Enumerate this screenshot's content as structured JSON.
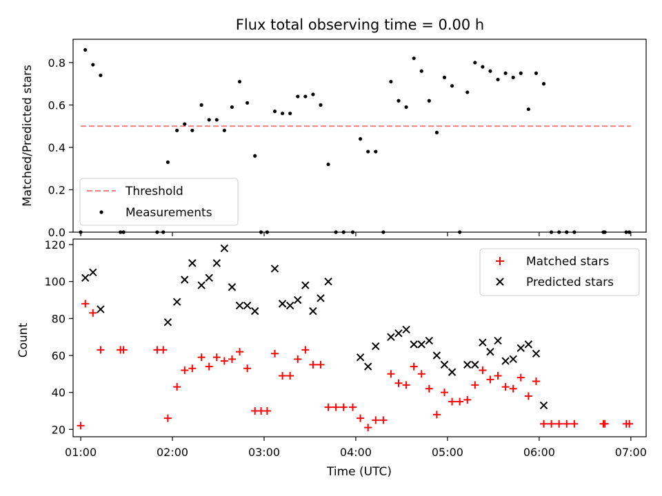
{
  "figure": {
    "title": "Flux total observing time = 0.00 h"
  },
  "colors": {
    "threshold": "#f08080",
    "measurements": "#000000",
    "matched": "#ff0000",
    "predicted": "#000000"
  },
  "chart_data": [
    {
      "type": "scatter",
      "panel": "top",
      "title": "Flux total observing time = 0.00 h",
      "xlabel": "",
      "ylabel": "Matched/Predicted stars",
      "xlim_minutes_utc": [
        55,
        430
      ],
      "ylim": [
        0,
        0.91
      ],
      "yticks": [
        0.0,
        0.2,
        0.4,
        0.6,
        0.8
      ],
      "ytick_labels": [
        "0.0",
        "0.2",
        "0.4",
        "0.6",
        "0.8"
      ],
      "xticks": [
        "01:00",
        "02:00",
        "03:00",
        "04:00",
        "05:00",
        "06:00",
        "07:00"
      ],
      "xtick_labels_shown": false,
      "legend_position": "lower-left",
      "legend": [
        {
          "label": "Threshold",
          "style": "dashed-line",
          "color": "#f08080"
        },
        {
          "label": "Measurements",
          "style": "dot",
          "color": "#000000"
        }
      ],
      "threshold": {
        "name": "Threshold",
        "y": 0.5,
        "x_start": "01:00",
        "x_end": "07:00"
      },
      "series": [
        {
          "name": "Measurements",
          "points": [
            [
              "01:00",
              0.0
            ],
            [
              "01:03",
              0.86
            ],
            [
              "01:08",
              0.79
            ],
            [
              "01:13",
              0.74
            ],
            [
              "01:26",
              0.0
            ],
            [
              "01:28",
              0.0
            ],
            [
              "01:50",
              0.0
            ],
            [
              "01:54",
              0.0
            ],
            [
              "01:57",
              0.33
            ],
            [
              "02:03",
              0.48
            ],
            [
              "02:08",
              0.51
            ],
            [
              "02:13",
              0.48
            ],
            [
              "02:19",
              0.6
            ],
            [
              "02:24",
              0.53
            ],
            [
              "02:29",
              0.53
            ],
            [
              "02:34",
              0.48
            ],
            [
              "02:39",
              0.59
            ],
            [
              "02:44",
              0.71
            ],
            [
              "02:49",
              0.61
            ],
            [
              "02:54",
              0.36
            ],
            [
              "02:58",
              0.0
            ],
            [
              "03:02",
              0.0
            ],
            [
              "03:07",
              0.57
            ],
            [
              "03:12",
              0.56
            ],
            [
              "03:17",
              0.56
            ],
            [
              "03:22",
              0.64
            ],
            [
              "03:27",
              0.64
            ],
            [
              "03:32",
              0.65
            ],
            [
              "03:37",
              0.6
            ],
            [
              "03:42",
              0.32
            ],
            [
              "03:47",
              0.0
            ],
            [
              "03:52",
              0.0
            ],
            [
              "03:58",
              0.0
            ],
            [
              "04:03",
              0.44
            ],
            [
              "04:08",
              0.38
            ],
            [
              "04:13",
              0.38
            ],
            [
              "04:18",
              0.0
            ],
            [
              "04:23",
              0.71
            ],
            [
              "04:28",
              0.62
            ],
            [
              "04:33",
              0.59
            ],
            [
              "04:38",
              0.82
            ],
            [
              "04:43",
              0.76
            ],
            [
              "04:48",
              0.62
            ],
            [
              "04:53",
              0.47
            ],
            [
              "04:58",
              0.73
            ],
            [
              "05:03",
              0.69
            ],
            [
              "05:08",
              0.0
            ],
            [
              "05:13",
              0.66
            ],
            [
              "05:18",
              0.8
            ],
            [
              "05:23",
              0.78
            ],
            [
              "05:28",
              0.76
            ],
            [
              "05:33",
              0.72
            ],
            [
              "05:38",
              0.75
            ],
            [
              "05:43",
              0.73
            ],
            [
              "05:48",
              0.75
            ],
            [
              "05:53",
              0.58
            ],
            [
              "05:58",
              0.75
            ],
            [
              "06:03",
              0.7
            ],
            [
              "06:08",
              0.0
            ],
            [
              "06:13",
              0.0
            ],
            [
              "06:18",
              0.0
            ],
            [
              "06:23",
              0.0
            ],
            [
              "06:42",
              0.0
            ],
            [
              "06:43",
              0.0
            ],
            [
              "06:57",
              0.0
            ],
            [
              "06:59",
              0.0
            ]
          ]
        }
      ]
    },
    {
      "type": "scatter",
      "panel": "bottom",
      "title": "",
      "xlabel": "Time (UTC)",
      "ylabel": "Count",
      "xlim_minutes_utc": [
        55,
        430
      ],
      "ylim": [
        16,
        123
      ],
      "yticks": [
        20,
        40,
        60,
        80,
        100,
        120
      ],
      "ytick_labels": [
        "20",
        "40",
        "60",
        "80",
        "100",
        "120"
      ],
      "xticks": [
        "01:00",
        "02:00",
        "03:00",
        "04:00",
        "05:00",
        "06:00",
        "07:00"
      ],
      "xtick_labels": [
        "01:00",
        "02:00",
        "03:00",
        "04:00",
        "05:00",
        "06:00",
        "07:00"
      ],
      "legend_position": "upper-right",
      "legend": [
        {
          "label": "Matched stars",
          "style": "plus",
          "color": "#ff0000"
        },
        {
          "label": "Predicted stars",
          "style": "x",
          "color": "#000000"
        }
      ],
      "series": [
        {
          "name": "Matched stars",
          "points": [
            [
              "01:00",
              22
            ],
            [
              "01:03",
              88
            ],
            [
              "01:08",
              83
            ],
            [
              "01:13",
              63
            ],
            [
              "01:26",
              63
            ],
            [
              "01:28",
              63
            ],
            [
              "01:50",
              63
            ],
            [
              "01:54",
              63
            ],
            [
              "01:57",
              26
            ],
            [
              "02:03",
              43
            ],
            [
              "02:08",
              52
            ],
            [
              "02:13",
              53
            ],
            [
              "02:19",
              59
            ],
            [
              "02:24",
              54
            ],
            [
              "02:29",
              59
            ],
            [
              "02:34",
              57
            ],
            [
              "02:39",
              58
            ],
            [
              "02:44",
              62
            ],
            [
              "02:49",
              53
            ],
            [
              "02:54",
              30
            ],
            [
              "02:58",
              30
            ],
            [
              "03:02",
              30
            ],
            [
              "03:07",
              61
            ],
            [
              "03:12",
              49
            ],
            [
              "03:17",
              49
            ],
            [
              "03:22",
              58
            ],
            [
              "03:27",
              63
            ],
            [
              "03:32",
              55
            ],
            [
              "03:37",
              55
            ],
            [
              "03:42",
              32
            ],
            [
              "03:47",
              32
            ],
            [
              "03:52",
              32
            ],
            [
              "03:58",
              32
            ],
            [
              "04:03",
              26
            ],
            [
              "04:08",
              21
            ],
            [
              "04:13",
              25
            ],
            [
              "04:18",
              25
            ],
            [
              "04:23",
              50
            ],
            [
              "04:28",
              45
            ],
            [
              "04:33",
              44
            ],
            [
              "04:38",
              54
            ],
            [
              "04:43",
              50
            ],
            [
              "04:48",
              42
            ],
            [
              "04:53",
              28
            ],
            [
              "04:58",
              40
            ],
            [
              "05:03",
              35
            ],
            [
              "05:08",
              35
            ],
            [
              "05:13",
              36
            ],
            [
              "05:18",
              44
            ],
            [
              "05:23",
              52
            ],
            [
              "05:28",
              47
            ],
            [
              "05:33",
              49
            ],
            [
              "05:38",
              43
            ],
            [
              "05:43",
              42
            ],
            [
              "05:48",
              48
            ],
            [
              "05:53",
              38
            ],
            [
              "05:58",
              46
            ],
            [
              "06:03",
              23
            ],
            [
              "06:08",
              23
            ],
            [
              "06:13",
              23
            ],
            [
              "06:18",
              23
            ],
            [
              "06:23",
              23
            ],
            [
              "06:42",
              23
            ],
            [
              "06:43",
              23
            ],
            [
              "06:57",
              23
            ],
            [
              "06:59",
              23
            ]
          ]
        },
        {
          "name": "Predicted stars",
          "points": [
            [
              "01:03",
              102
            ],
            [
              "01:08",
              105
            ],
            [
              "01:13",
              85
            ],
            [
              "01:57",
              78
            ],
            [
              "02:03",
              89
            ],
            [
              "02:08",
              101
            ],
            [
              "02:13",
              110
            ],
            [
              "02:19",
              98
            ],
            [
              "02:24",
              102
            ],
            [
              "02:29",
              110
            ],
            [
              "02:34",
              118
            ],
            [
              "02:39",
              97
            ],
            [
              "02:44",
              87
            ],
            [
              "02:49",
              87
            ],
            [
              "02:54",
              84
            ],
            [
              "03:07",
              107
            ],
            [
              "03:12",
              88
            ],
            [
              "03:17",
              87
            ],
            [
              "03:22",
              90
            ],
            [
              "03:27",
              98
            ],
            [
              "03:32",
              84
            ],
            [
              "03:37",
              91
            ],
            [
              "03:42",
              100
            ],
            [
              "04:03",
              59
            ],
            [
              "04:08",
              54
            ],
            [
              "04:13",
              65
            ],
            [
              "04:23",
              70
            ],
            [
              "04:28",
              72
            ],
            [
              "04:33",
              74
            ],
            [
              "04:38",
              66
            ],
            [
              "04:43",
              66
            ],
            [
              "04:48",
              68
            ],
            [
              "04:53",
              60
            ],
            [
              "04:58",
              55
            ],
            [
              "05:03",
              51
            ],
            [
              "05:13",
              55
            ],
            [
              "05:18",
              55
            ],
            [
              "05:23",
              67
            ],
            [
              "05:28",
              62
            ],
            [
              "05:33",
              68
            ],
            [
              "05:38",
              57
            ],
            [
              "05:43",
              58
            ],
            [
              "05:48",
              64
            ],
            [
              "05:53",
              66
            ],
            [
              "05:58",
              61
            ],
            [
              "06:03",
              33
            ]
          ]
        }
      ]
    }
  ]
}
